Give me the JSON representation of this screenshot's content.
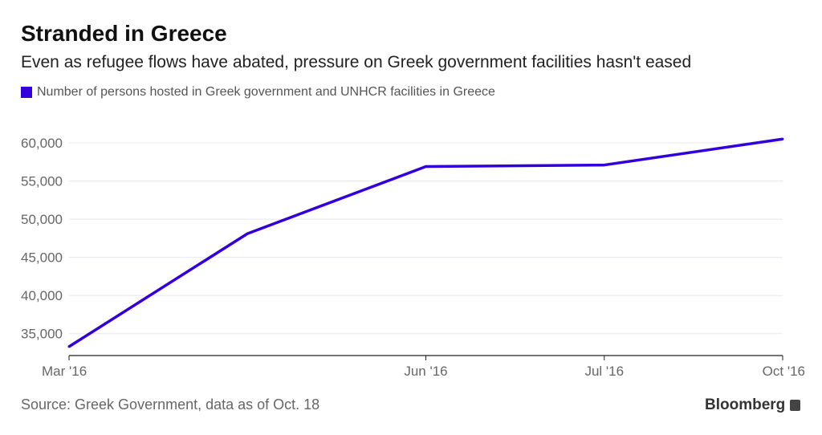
{
  "chart_data": {
    "type": "line",
    "title": "Stranded in Greece",
    "subtitle": "Even as refugee flows have abated, pressure on Greek government facilities hasn't eased",
    "categories": [
      "Mar '16",
      "",
      "Jun '16",
      "Jul '16",
      "Oct '16"
    ],
    "series": [
      {
        "name": "Number of persons hosted in Greek government and UNHCR facilities in Greece",
        "values": [
          33300,
          48100,
          56900,
          57100,
          60500
        ],
        "color": "#3300dd"
      }
    ],
    "yticks": [
      35000,
      40000,
      45000,
      50000,
      55000,
      60000
    ],
    "ytick_labels": [
      "35,000",
      "40,000",
      "45,000",
      "50,000",
      "55,000",
      "60,000"
    ],
    "ylim": [
      32300,
      62000
    ],
    "grid": true,
    "legend": "top-left",
    "source": "Source: Greek Government, data as of Oct. 18",
    "brand": "Bloomberg"
  }
}
